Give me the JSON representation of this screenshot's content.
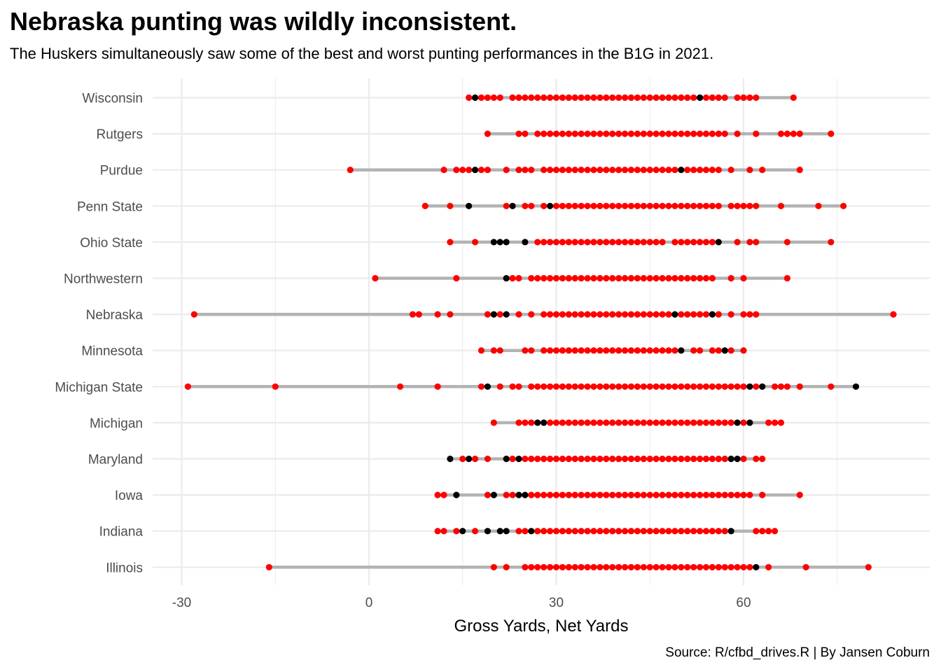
{
  "title": "Nebraska punting was wildly inconsistent.",
  "subtitle": "The Huskers simultaneously saw some of the best and worst punting performances in the B1G in 2021.",
  "caption": "Source: R/cfbd_drives.R | By Jansen Coburn",
  "colors": {
    "point": "#ff0000",
    "point_highlight": "#000000",
    "range": "#b3b3b3",
    "grid": "#ebebeb"
  },
  "chart_data": {
    "type": "scatter",
    "xlabel": "Gross Yards, Net Yards",
    "ylabel": "",
    "xlim": [
      -30,
      90
    ],
    "xticks": [
      -30,
      0,
      30,
      60
    ],
    "grid": true,
    "series": [
      {
        "team": "Wisconsin",
        "min": 16,
        "max": 68,
        "red": [
          16,
          18,
          19,
          20,
          21,
          23,
          24,
          25,
          26,
          27,
          28,
          29,
          30,
          31,
          32,
          33,
          34,
          35,
          36,
          37,
          38,
          39,
          40,
          41,
          42,
          43,
          44,
          45,
          46,
          47,
          48,
          49,
          50,
          51,
          52,
          54,
          55,
          56,
          57,
          59,
          60,
          61,
          62,
          68
        ],
        "black": [
          17,
          53
        ]
      },
      {
        "team": "Rutgers",
        "min": 19,
        "max": 74,
        "red": [
          19,
          24,
          25,
          27,
          28,
          29,
          30,
          31,
          32,
          33,
          34,
          35,
          36,
          37,
          38,
          39,
          40,
          41,
          42,
          43,
          44,
          45,
          46,
          47,
          48,
          49,
          50,
          51,
          52,
          53,
          54,
          55,
          56,
          57,
          59,
          62,
          66,
          67,
          68,
          69,
          74
        ],
        "black": []
      },
      {
        "team": "Purdue",
        "min": -3,
        "max": 69,
        "red": [
          -3,
          12,
          14,
          15,
          16,
          18,
          19,
          22,
          24,
          25,
          26,
          28,
          29,
          30,
          31,
          32,
          33,
          34,
          35,
          36,
          37,
          38,
          39,
          40,
          41,
          42,
          43,
          44,
          45,
          46,
          47,
          48,
          49,
          51,
          52,
          53,
          54,
          55,
          56,
          58,
          61,
          63,
          69
        ],
        "black": [
          17,
          50
        ]
      },
      {
        "team": "Penn State",
        "min": 9,
        "max": 76,
        "red": [
          9,
          13,
          22,
          25,
          26,
          28,
          30,
          31,
          32,
          33,
          34,
          35,
          36,
          37,
          38,
          39,
          40,
          41,
          42,
          43,
          44,
          45,
          46,
          47,
          48,
          49,
          50,
          51,
          52,
          53,
          54,
          55,
          56,
          58,
          59,
          60,
          61,
          62,
          66,
          72,
          76
        ],
        "black": [
          16,
          23,
          29
        ]
      },
      {
        "team": "Ohio State",
        "min": 13,
        "max": 74,
        "red": [
          13,
          17,
          27,
          28,
          29,
          30,
          31,
          32,
          33,
          34,
          35,
          36,
          37,
          38,
          39,
          40,
          41,
          42,
          43,
          44,
          45,
          46,
          47,
          49,
          50,
          51,
          52,
          53,
          54,
          55,
          59,
          61,
          62,
          67,
          74
        ],
        "black": [
          20,
          21,
          22,
          25,
          56
        ]
      },
      {
        "team": "Northwestern",
        "min": 1,
        "max": 67,
        "red": [
          1,
          14,
          23,
          24,
          26,
          27,
          28,
          29,
          30,
          31,
          32,
          33,
          34,
          35,
          36,
          37,
          38,
          39,
          40,
          41,
          42,
          43,
          44,
          45,
          46,
          47,
          48,
          49,
          50,
          51,
          52,
          53,
          54,
          55,
          58,
          60,
          67
        ],
        "black": [
          22
        ]
      },
      {
        "team": "Nebraska",
        "min": -28,
        "max": 84,
        "red": [
          -28,
          7,
          8,
          11,
          13,
          19,
          21,
          24,
          26,
          28,
          29,
          30,
          31,
          32,
          33,
          34,
          35,
          36,
          37,
          38,
          39,
          40,
          41,
          42,
          43,
          44,
          45,
          46,
          47,
          48,
          50,
          51,
          52,
          53,
          54,
          56,
          58,
          60,
          61,
          62,
          84
        ],
        "black": [
          20,
          22,
          49,
          55
        ]
      },
      {
        "team": "Minnesota",
        "min": 18,
        "max": 60,
        "red": [
          18,
          20,
          21,
          25,
          26,
          28,
          29,
          30,
          31,
          32,
          33,
          34,
          35,
          36,
          37,
          38,
          39,
          40,
          41,
          42,
          43,
          44,
          45,
          46,
          47,
          48,
          49,
          52,
          53,
          55,
          56,
          58,
          60
        ],
        "black": [
          50,
          57
        ]
      },
      {
        "team": "Michigan State",
        "min": -29,
        "max": 78,
        "red": [
          -29,
          -15,
          5,
          11,
          18,
          21,
          23,
          24,
          26,
          27,
          28,
          29,
          30,
          31,
          32,
          33,
          34,
          35,
          36,
          37,
          38,
          39,
          40,
          41,
          42,
          43,
          44,
          45,
          46,
          47,
          48,
          49,
          50,
          51,
          52,
          53,
          54,
          55,
          56,
          57,
          58,
          59,
          60,
          62,
          65,
          66,
          67,
          69,
          74
        ],
        "black": [
          19,
          61,
          63,
          78
        ]
      },
      {
        "team": "Michigan",
        "min": 20,
        "max": 66,
        "red": [
          20,
          24,
          25,
          26,
          29,
          30,
          31,
          32,
          33,
          34,
          35,
          36,
          37,
          38,
          39,
          40,
          41,
          42,
          43,
          44,
          45,
          46,
          47,
          48,
          49,
          50,
          51,
          52,
          53,
          54,
          55,
          56,
          57,
          58,
          60,
          64,
          65,
          66
        ],
        "black": [
          27,
          28,
          59,
          61
        ]
      },
      {
        "team": "Maryland",
        "min": 13,
        "max": 63,
        "red": [
          15,
          17,
          19,
          23,
          25,
          26,
          27,
          28,
          29,
          30,
          31,
          32,
          33,
          34,
          35,
          36,
          37,
          38,
          39,
          40,
          41,
          42,
          43,
          44,
          45,
          46,
          47,
          48,
          49,
          50,
          51,
          52,
          53,
          54,
          55,
          56,
          57,
          60,
          62,
          63
        ],
        "black": [
          13,
          16,
          22,
          24,
          58,
          59
        ]
      },
      {
        "team": "Iowa",
        "min": 11,
        "max": 69,
        "red": [
          11,
          12,
          19,
          22,
          23,
          26,
          27,
          28,
          29,
          30,
          31,
          32,
          33,
          34,
          35,
          36,
          37,
          38,
          39,
          40,
          41,
          42,
          43,
          44,
          45,
          46,
          47,
          48,
          49,
          50,
          51,
          52,
          53,
          54,
          55,
          56,
          57,
          58,
          59,
          60,
          61,
          63,
          69
        ],
        "black": [
          14,
          20,
          24,
          25
        ]
      },
      {
        "team": "Indiana",
        "min": 11,
        "max": 65,
        "red": [
          11,
          12,
          14,
          17,
          24,
          25,
          27,
          28,
          29,
          30,
          31,
          32,
          33,
          34,
          35,
          36,
          37,
          38,
          39,
          40,
          41,
          42,
          43,
          44,
          45,
          46,
          47,
          48,
          49,
          50,
          51,
          52,
          53,
          54,
          55,
          56,
          57,
          62,
          63,
          64,
          65
        ],
        "black": [
          15,
          19,
          21,
          22,
          26,
          58
        ]
      },
      {
        "team": "Illinois",
        "min": -16,
        "max": 80,
        "red": [
          -16,
          20,
          22,
          25,
          26,
          27,
          28,
          29,
          30,
          31,
          32,
          33,
          34,
          35,
          36,
          37,
          38,
          39,
          40,
          41,
          42,
          43,
          44,
          45,
          46,
          47,
          48,
          49,
          50,
          51,
          52,
          53,
          54,
          55,
          56,
          57,
          58,
          59,
          60,
          61,
          64,
          70,
          80
        ],
        "black": [
          62
        ]
      }
    ]
  }
}
